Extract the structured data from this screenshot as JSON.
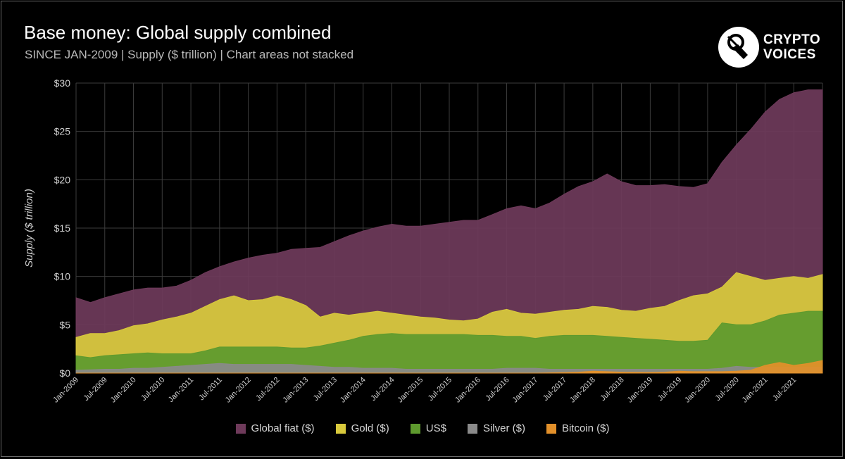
{
  "title": "Base money: Global supply combined",
  "subtitle": "SINCE JAN-2009 | Supply ($ trillion) | Chart areas not stacked",
  "logo": {
    "line1": "CRYPTO",
    "line2": "VOICES",
    "icon": "crypto-voices-logo-icon"
  },
  "colors": {
    "background": "#000000",
    "grid": "#3c3c3c",
    "global_fiat": "#6e3a5a",
    "gold": "#d8c93c",
    "usd": "#5e9a2e",
    "silver": "#8a8a8a",
    "bitcoin": "#e2902a"
  },
  "chart_data": {
    "type": "area",
    "stacked": false,
    "ylabel": "Supply ($ trillion)",
    "xlabel": "",
    "ylim": [
      0,
      30
    ],
    "y_ticks": [
      "$0",
      "$5",
      "$10",
      "$15",
      "$20",
      "$25",
      "$30"
    ],
    "x_ticks": [
      "Jan-2009",
      "Jul-2009",
      "Jan-2010",
      "Jul-2010",
      "Jan-2011",
      "Jul-2011",
      "Jan-2012",
      "Jul-2012",
      "Jan-2013",
      "Jul-2013",
      "Jan-2014",
      "Jul-2014",
      "Jan-2015",
      "Jul-2015",
      "Jan-2016",
      "Jul-2016",
      "Jan-2017",
      "Jul-2017",
      "Jan-2018",
      "Jul-2018",
      "Jan-2019",
      "Jul-2019",
      "Jan-2020",
      "Jul-2020",
      "Jan-2021",
      "Jul-2021"
    ],
    "grid": true,
    "legend_position": "bottom",
    "x": [
      "Jan-2009",
      "Apr-2009",
      "Jul-2009",
      "Oct-2009",
      "Jan-2010",
      "Apr-2010",
      "Jul-2010",
      "Oct-2010",
      "Jan-2011",
      "Apr-2011",
      "Jul-2011",
      "Oct-2011",
      "Jan-2012",
      "Apr-2012",
      "Jul-2012",
      "Oct-2012",
      "Jan-2013",
      "Apr-2013",
      "Jul-2013",
      "Oct-2013",
      "Jan-2014",
      "Apr-2014",
      "Jul-2014",
      "Oct-2014",
      "Jan-2015",
      "Apr-2015",
      "Jul-2015",
      "Oct-2015",
      "Jan-2016",
      "Apr-2016",
      "Jul-2016",
      "Oct-2016",
      "Jan-2017",
      "Apr-2017",
      "Jul-2017",
      "Oct-2017",
      "Jan-2018",
      "Apr-2018",
      "Jul-2018",
      "Oct-2018",
      "Jan-2019",
      "Apr-2019",
      "Jul-2019",
      "Oct-2019",
      "Jan-2020",
      "Apr-2020",
      "Jul-2020",
      "Oct-2020",
      "Jan-2021",
      "Apr-2021",
      "Jul-2021",
      "Oct-2021",
      "Dec-2021"
    ],
    "series": [
      {
        "name": "Global fiat ($)",
        "key": "global_fiat",
        "values": [
          7.8,
          7.3,
          7.8,
          8.2,
          8.6,
          8.8,
          8.8,
          9.0,
          9.6,
          10.4,
          11.0,
          11.5,
          11.9,
          12.2,
          12.4,
          12.8,
          12.9,
          13.0,
          13.6,
          14.2,
          14.7,
          15.1,
          15.4,
          15.2,
          15.2,
          15.4,
          15.6,
          15.8,
          15.8,
          16.4,
          17.0,
          17.3,
          17.0,
          17.6,
          18.5,
          19.3,
          19.8,
          20.6,
          19.8,
          19.4,
          19.4,
          19.5,
          19.3,
          19.2,
          19.6,
          21.8,
          23.6,
          25.2,
          27.0,
          28.3,
          29.0,
          29.3,
          29.3
        ]
      },
      {
        "name": "Gold ($)",
        "key": "gold",
        "values": [
          3.7,
          4.1,
          4.1,
          4.4,
          4.9,
          5.1,
          5.5,
          5.8,
          6.2,
          6.9,
          7.6,
          8.0,
          7.5,
          7.6,
          8.0,
          7.6,
          7.0,
          5.8,
          6.2,
          6.0,
          6.2,
          6.4,
          6.2,
          6.0,
          5.8,
          5.7,
          5.5,
          5.4,
          5.6,
          6.3,
          6.6,
          6.2,
          6.1,
          6.3,
          6.5,
          6.6,
          6.9,
          6.8,
          6.5,
          6.4,
          6.7,
          6.9,
          7.5,
          8.0,
          8.2,
          8.9,
          10.4,
          10.0,
          9.6,
          9.8,
          10.0,
          9.8,
          10.2
        ]
      },
      {
        "name": "US$",
        "key": "usd",
        "values": [
          1.8,
          1.6,
          1.8,
          1.9,
          2.0,
          2.1,
          2.0,
          2.0,
          2.0,
          2.3,
          2.7,
          2.7,
          2.7,
          2.7,
          2.7,
          2.6,
          2.6,
          2.8,
          3.1,
          3.4,
          3.8,
          4.0,
          4.1,
          4.0,
          4.0,
          4.0,
          4.0,
          4.0,
          3.9,
          3.9,
          3.8,
          3.8,
          3.6,
          3.8,
          3.9,
          3.9,
          3.9,
          3.8,
          3.7,
          3.6,
          3.5,
          3.4,
          3.3,
          3.3,
          3.4,
          5.2,
          5.0,
          5.0,
          5.4,
          6.0,
          6.2,
          6.4,
          6.4
        ]
      },
      {
        "name": "Silver ($)",
        "key": "silver",
        "values": [
          0.3,
          0.35,
          0.4,
          0.4,
          0.5,
          0.5,
          0.6,
          0.7,
          0.8,
          0.9,
          1.0,
          0.9,
          0.9,
          0.9,
          0.9,
          0.9,
          0.8,
          0.7,
          0.6,
          0.6,
          0.5,
          0.5,
          0.5,
          0.4,
          0.4,
          0.4,
          0.4,
          0.4,
          0.4,
          0.4,
          0.5,
          0.5,
          0.5,
          0.4,
          0.4,
          0.4,
          0.4,
          0.4,
          0.4,
          0.4,
          0.4,
          0.4,
          0.4,
          0.4,
          0.4,
          0.5,
          0.7,
          0.6,
          0.6,
          0.6,
          0.6,
          0.6,
          0.6
        ]
      },
      {
        "name": "Bitcoin ($)",
        "key": "bitcoin",
        "values": [
          0,
          0,
          0,
          0,
          0,
          0,
          0,
          0,
          0,
          0,
          0,
          0,
          0,
          0,
          0,
          0,
          0,
          0,
          0,
          0,
          0,
          0,
          0,
          0,
          0,
          0,
          0,
          0,
          0,
          0,
          0,
          0,
          0,
          0.03,
          0.05,
          0.1,
          0.2,
          0.15,
          0.1,
          0.08,
          0.07,
          0.1,
          0.2,
          0.15,
          0.15,
          0.15,
          0.2,
          0.3,
          0.8,
          1.1,
          0.8,
          1.0,
          1.3
        ]
      }
    ]
  }
}
